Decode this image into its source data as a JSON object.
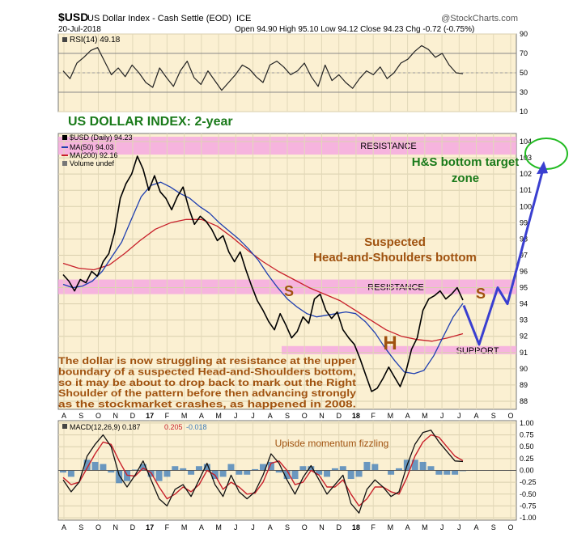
{
  "header": {
    "symbol": "$USD",
    "name": "US Dollar Index - Cash Settle (EOD)",
    "exchange": "ICE",
    "watermark": "@StockCharts.com",
    "date": "20-Jul-2018",
    "quote": "Open 94.90  High 95.10  Low 94.12  Close 94.23  Chg -0.72 (-0.75%)"
  },
  "colors": {
    "panel_bg": "#fbf0d2",
    "price_line": "#000000",
    "ma50": "#1f3fb0",
    "ma200": "#c8202a",
    "pink_band": "#f4a9e0",
    "annotation_brown": "#a0520f",
    "annotation_green": "#1a7a1a",
    "projection": "#3a3fd0",
    "macd_hist": "#3a7ab8"
  },
  "month_labels": [
    "A",
    "S",
    "O",
    "N",
    "D",
    "17",
    "F",
    "M",
    "A",
    "M",
    "J",
    "J",
    "A",
    "S",
    "O",
    "N",
    "D",
    "18",
    "F",
    "M",
    "A",
    "M",
    "J",
    "J",
    "A",
    "S",
    "O"
  ],
  "chart_data": [
    {
      "type": "line",
      "panel": "rsi",
      "legend": "RSI(14) 49.18",
      "ylim": [
        10,
        90
      ],
      "yticks": [
        10,
        30,
        50,
        70,
        90
      ],
      "overbought": 70,
      "oversold": 30,
      "series": [
        {
          "name": "RSI(14)",
          "values": [
            52,
            44,
            60,
            66,
            73,
            76,
            62,
            48,
            55,
            46,
            58,
            50,
            40,
            35,
            55,
            45,
            36,
            52,
            62,
            45,
            38,
            52,
            42,
            32,
            40,
            48,
            58,
            54,
            46,
            40,
            58,
            62,
            56,
            48,
            52,
            60,
            46,
            36,
            58,
            42,
            48,
            40,
            34,
            44,
            52,
            48,
            56,
            44,
            50,
            60,
            64,
            72,
            78,
            74,
            66,
            70,
            58,
            50,
            49
          ]
        }
      ]
    },
    {
      "type": "line",
      "panel": "price",
      "ylim": [
        87.5,
        104.5
      ],
      "yticks": [
        88,
        89,
        90,
        91,
        92,
        93,
        94,
        95,
        96,
        97,
        98,
        99,
        100,
        101,
        102,
        103,
        104
      ],
      "title": "US DOLLAR INDEX: 2-year",
      "legend": [
        "$USD (Daily) 94.23",
        "MA(50) 94.03",
        "MA(200) 92.16",
        "Volume undef"
      ],
      "series": [
        {
          "name": "$USD (Daily)",
          "values": [
            95.8,
            95.4,
            94.8,
            95.5,
            95.3,
            96.0,
            95.7,
            96.6,
            97.1,
            98.4,
            100.5,
            101.4,
            102.0,
            103.1,
            102.3,
            101.0,
            101.9,
            100.9,
            100.5,
            99.8,
            100.6,
            101.2,
            99.9,
            98.9,
            99.4,
            99.1,
            98.6,
            97.9,
            98.2,
            97.2,
            96.6,
            97.2,
            96.1,
            95.1,
            94.2,
            93.6,
            92.9,
            92.4,
            93.4,
            92.7,
            91.9,
            92.3,
            93.2,
            92.8,
            94.3,
            94.6,
            93.6,
            93.1,
            93.5,
            92.4,
            91.9,
            91.5,
            90.6,
            89.6,
            88.6,
            88.8,
            89.4,
            90.1,
            89.5,
            88.9,
            89.8,
            91.2,
            91.9,
            93.6,
            94.3,
            94.5,
            94.8,
            94.3,
            94.6,
            95.0,
            94.23
          ]
        },
        {
          "name": "MA(50)",
          "values": [
            95.2,
            95.0,
            95.1,
            95.4,
            96.0,
            96.9,
            97.8,
            99.2,
            100.6,
            101.3,
            101.5,
            101.2,
            100.8,
            100.5,
            100.0,
            99.6,
            99.0,
            98.5,
            98.0,
            97.4,
            96.7,
            95.8,
            95.0,
            94.3,
            93.8,
            93.4,
            93.2,
            93.3,
            93.4,
            93.5,
            93.4,
            92.9,
            92.2,
            91.3,
            90.5,
            89.8,
            89.7,
            89.9,
            90.8,
            92.0,
            93.2,
            94.03
          ]
        },
        {
          "name": "MA(200)",
          "values": [
            96.5,
            96.2,
            96.1,
            96.4,
            97.1,
            97.9,
            98.6,
            99.0,
            99.2,
            99.2,
            98.8,
            98.1,
            97.3,
            96.6,
            96.0,
            95.5,
            95.0,
            94.6,
            94.2,
            93.6,
            93.0,
            92.4,
            92.0,
            91.8,
            91.7,
            91.9,
            92.16
          ]
        }
      ],
      "bands": [
        {
          "label": "RESISTANCE",
          "range": [
            103.2,
            104.3
          ]
        },
        {
          "label": "RESISTANCE",
          "range": [
            94.6,
            95.5
          ]
        },
        {
          "label": "SUPPORT",
          "range": [
            90.9,
            91.4
          ]
        }
      ],
      "projection": [
        [
          93.9,
          91.5,
          95.0,
          94.0,
          102.5
        ]
      ]
    },
    {
      "type": "line",
      "panel": "macd",
      "legend": [
        "MACD(12,26,9) 0.187",
        "0.205",
        "-0.018"
      ],
      "ylim": [
        -1.05,
        1.05
      ],
      "yticks": [
        1.0,
        0.75,
        0.5,
        0.25,
        0.0,
        -0.25,
        -0.5,
        -0.75,
        -1.0
      ],
      "series": [
        {
          "name": "MACD",
          "values": [
            -0.2,
            -0.45,
            -0.25,
            0.3,
            0.55,
            0.75,
            0.5,
            -0.1,
            -0.35,
            -0.1,
            0.2,
            -0.2,
            -0.6,
            -0.75,
            -0.4,
            -0.3,
            -0.55,
            -0.2,
            0.15,
            -0.3,
            -0.55,
            -0.1,
            -0.45,
            -0.6,
            -0.45,
            -0.1,
            0.35,
            0.15,
            -0.2,
            -0.5,
            -0.15,
            0.1,
            -0.2,
            -0.5,
            -0.3,
            -0.1,
            -0.7,
            -0.9,
            -0.4,
            -0.2,
            -0.35,
            -0.55,
            -0.45,
            0.1,
            0.55,
            0.8,
            0.85,
            0.6,
            0.4,
            0.2,
            0.187
          ]
        },
        {
          "name": "Signal",
          "values": [
            -0.15,
            -0.3,
            -0.25,
            0.05,
            0.35,
            0.6,
            0.55,
            0.2,
            -0.1,
            -0.12,
            0.05,
            -0.05,
            -0.35,
            -0.6,
            -0.5,
            -0.35,
            -0.45,
            -0.3,
            0.0,
            -0.1,
            -0.4,
            -0.25,
            -0.35,
            -0.5,
            -0.48,
            -0.25,
            0.15,
            0.2,
            0.0,
            -0.3,
            -0.25,
            0.0,
            -0.1,
            -0.35,
            -0.35,
            -0.2,
            -0.5,
            -0.75,
            -0.6,
            -0.35,
            -0.35,
            -0.45,
            -0.5,
            -0.15,
            0.3,
            0.6,
            0.75,
            0.7,
            0.5,
            0.3,
            0.205
          ]
        }
      ],
      "histogram_last": -0.018
    }
  ],
  "annotations": {
    "hs_target": "H&S bottom target zone",
    "suspected": "Suspected Head-and-Shoulders bottom",
    "left_shoulder": "S",
    "head": "H",
    "right_shoulder": "S",
    "commentary": [
      "The dollar is now struggling at resistance at the upper",
      "boundary of a suspected Head-and-Shoulders bottom,",
      "so it may be about to drop back to mark out the Right",
      "Shoulder of the pattern before then advancing strongly",
      "as the stockmarket crashes, as happened in 2008."
    ],
    "macd_note": "Upisde momentum fizzling"
  }
}
